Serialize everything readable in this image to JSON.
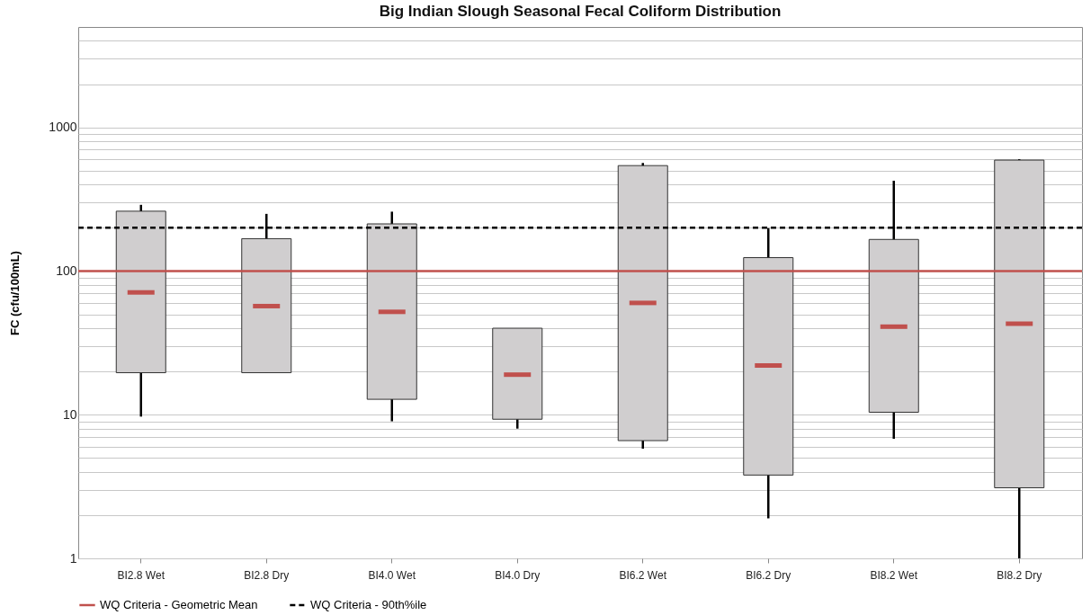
{
  "chart_data": {
    "type": "box",
    "title": "Big Indian Slough Seasonal Fecal Coliform Distribution",
    "ylabel": "FC (cfu/100mL)",
    "categories": [
      "BI2.8 Wet",
      "BI2.8 Dry",
      "BI4.0 Wet",
      "BI4.0 Dry",
      "BI6.2 Wet",
      "BI6.2 Dry",
      "BI8.2 Wet",
      "BI8.2 Dry"
    ],
    "series": [
      {
        "color": "#d0cecf",
        "boxes": [
          {
            "low": 9.7,
            "q1": 19.6,
            "median": 71,
            "q3": 261,
            "high": 289
          },
          {
            "low": 19.6,
            "q1": 19.6,
            "median": 57,
            "q3": 168,
            "high": 250
          },
          {
            "low": 9,
            "q1": 12.8,
            "median": 52,
            "q3": 213,
            "high": 259
          },
          {
            "low": 8,
            "q1": 9.3,
            "median": 19,
            "q3": 40,
            "high": 40
          },
          {
            "low": 5.8,
            "q1": 6.6,
            "median": 60,
            "q3": 542,
            "high": 565
          },
          {
            "low": 1.9,
            "q1": 3.8,
            "median": 22,
            "q3": 124,
            "high": 199
          },
          {
            "low": 6.8,
            "q1": 10.4,
            "median": 41,
            "q3": 166,
            "high": 425
          },
          {
            "low": 1,
            "q1": 3.1,
            "median": 43,
            "q3": 592,
            "high": 600
          }
        ]
      }
    ],
    "log": "y",
    "ylim": [
      1,
      5000
    ],
    "yticks": [
      1,
      {
        "value": 2,
        "label": null
      },
      {
        "value": 3,
        "label": null
      },
      {
        "value": 4,
        "label": null
      },
      {
        "value": 5,
        "label": null
      },
      {
        "value": 6,
        "label": null
      },
      {
        "value": 7,
        "label": null
      },
      {
        "value": 8,
        "label": null
      },
      {
        "value": 9,
        "label": null
      },
      10,
      {
        "value": 20,
        "label": null
      },
      {
        "value": 30,
        "label": null
      },
      {
        "value": 40,
        "label": null
      },
      {
        "value": 50,
        "label": null
      },
      {
        "value": 60,
        "label": null
      },
      {
        "value": 70,
        "label": null
      },
      {
        "value": 80,
        "label": null
      },
      {
        "value": 90,
        "label": null
      },
      100,
      {
        "value": 200,
        "label": null
      },
      {
        "value": 300,
        "label": null
      },
      {
        "value": 400,
        "label": null
      },
      {
        "value": 500,
        "label": null
      },
      {
        "value": 600,
        "label": null
      },
      {
        "value": 700,
        "label": null
      },
      {
        "value": 800,
        "label": null
      },
      {
        "value": 900,
        "label": null
      },
      1000,
      {
        "value": 2000,
        "label": null
      },
      {
        "value": 3000,
        "label": null
      },
      {
        "value": 4000,
        "label": null
      }
    ],
    "grid": "y",
    "legend": "bottom",
    "ref_lines": [
      {
        "axis": "y",
        "value": 100,
        "label": "WQ Criteria - Geometric Mean",
        "color": "#c0504d",
        "line_style": "solid"
      },
      {
        "axis": "y",
        "value": 200,
        "label": "WQ Criteria - 90th%ile",
        "color": "#000000",
        "line_style": "dashed"
      }
    ]
  }
}
